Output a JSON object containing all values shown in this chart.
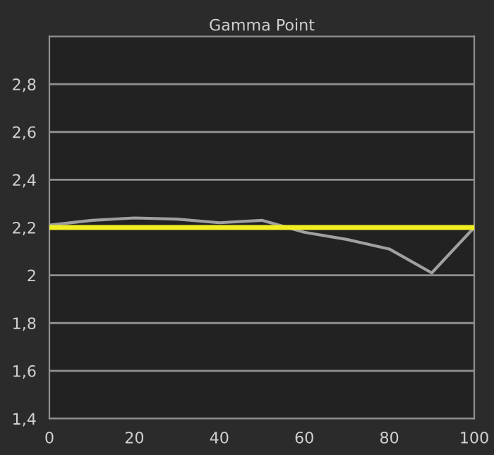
{
  "chart_data": {
    "type": "line",
    "title": "Gamma Point",
    "x": [
      0,
      10,
      20,
      30,
      40,
      50,
      60,
      70,
      80,
      90,
      100
    ],
    "series": [
      {
        "color": "#a0a0a0",
        "values": [
          2.21,
          2.23,
          2.24,
          2.235,
          2.22,
          2.23,
          2.18,
          2.15,
          2.11,
          2.01,
          2.2
        ]
      }
    ],
    "ref_lines": [
      {
        "axis": "y",
        "value": 2.2,
        "color": "#f0f020"
      }
    ],
    "xlim": [
      0,
      100
    ],
    "xticks": [
      0,
      20,
      40,
      60,
      80,
      100
    ],
    "ylim": [
      1.4,
      3.0
    ],
    "yticks": [
      {
        "value": 1.4,
        "label": "1,4"
      },
      {
        "value": 1.6,
        "label": "1,6"
      },
      {
        "value": 1.8,
        "label": "1,8"
      },
      {
        "value": 2,
        "label": "2"
      },
      {
        "value": 2.2,
        "label": "2,2"
      },
      {
        "value": 2.4,
        "label": "2,4"
      },
      {
        "value": 2.6,
        "label": "2,6"
      },
      {
        "value": 2.8,
        "label": "2,8"
      }
    ],
    "grid": "y",
    "marker": "none",
    "line_style": "solid",
    "legend": false
  }
}
